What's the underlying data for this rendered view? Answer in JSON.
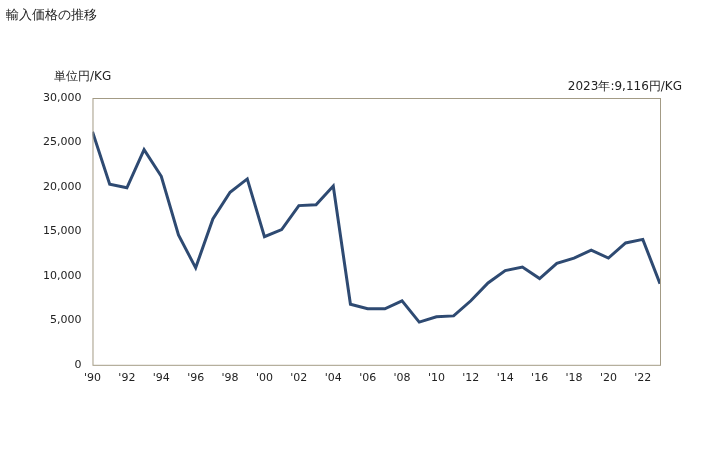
{
  "chart_data": {
    "type": "line",
    "title": "輸入価格の推移",
    "y_label": "単位円/KG",
    "annotation": "2023年:9,116円/KG",
    "categories": [
      "'90",
      null,
      "'92",
      null,
      "'94",
      null,
      "'96",
      null,
      "'98",
      null,
      "'00",
      null,
      "'02",
      null,
      "'04",
      null,
      "'06",
      null,
      "'08",
      null,
      "'10",
      null,
      "'12",
      null,
      "'14",
      null,
      "'16",
      null,
      "'18",
      null,
      "'20",
      null,
      "'22",
      null
    ],
    "values": [
      26200,
      20300,
      19900,
      24200,
      21200,
      14600,
      10900,
      16400,
      19400,
      20900,
      14400,
      15200,
      17900,
      18000,
      20100,
      6800,
      6300,
      6300,
      7200,
      4800,
      5400,
      5500,
      7200,
      9200,
      10600,
      11000,
      9700,
      11400,
      12000,
      12900,
      12000,
      13700,
      14100,
      9116
    ],
    "color": "#2e4a72",
    "ylim": [
      0,
      30000
    ],
    "yticks": [
      0,
      {
        "value": 5000,
        "label": "5,000"
      },
      {
        "value": 10000,
        "label": "10,000"
      },
      {
        "value": 15000,
        "label": "15,000"
      },
      {
        "value": 20000,
        "label": "20,000"
      },
      {
        "value": 25000,
        "label": "25,000"
      },
      {
        "value": 30000,
        "label": "30,000"
      }
    ],
    "grid": false
  }
}
